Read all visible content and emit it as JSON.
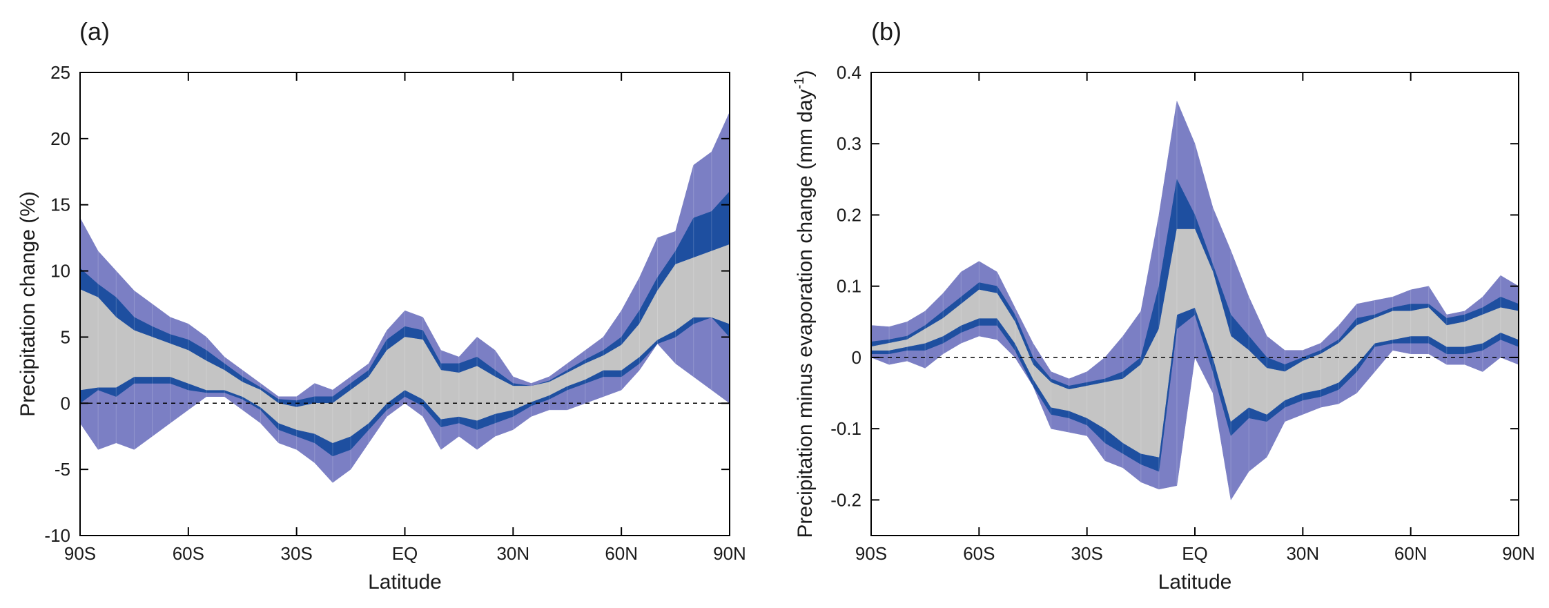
{
  "chart_data": [
    {
      "type": "area",
      "panel_label": "(a)",
      "xlabel": "Latitude",
      "ylabel": "Precipitation change (%)",
      "xlim": [
        -90,
        90
      ],
      "ylim": [
        -10,
        25
      ],
      "xticks": [
        -90,
        -60,
        -30,
        0,
        30,
        60,
        90
      ],
      "xtick_labels": [
        "90S",
        "60S",
        "30S",
        "EQ",
        "30N",
        "60N",
        "90N"
      ],
      "yticks": [
        -10,
        -5,
        0,
        5,
        10,
        15,
        20,
        25
      ],
      "ytick_labels": [
        "-10",
        "-5",
        "0",
        "5",
        "10",
        "15",
        "20",
        "25"
      ],
      "reference_line": 0,
      "x": [
        -90,
        -85,
        -80,
        -75,
        -70,
        -65,
        -60,
        -55,
        -50,
        -45,
        -40,
        -35,
        -30,
        -25,
        -20,
        -15,
        -10,
        -5,
        0,
        5,
        10,
        15,
        20,
        25,
        30,
        35,
        40,
        45,
        50,
        55,
        60,
        65,
        70,
        75,
        80,
        85,
        90
      ],
      "series": [
        {
          "band": "outer",
          "color": "#7b7fc4",
          "upper": [
            14.0,
            11.5,
            10.0,
            8.5,
            7.5,
            6.5,
            6.0,
            5.0,
            3.5,
            2.5,
            1.5,
            0.5,
            0.5,
            1.5,
            1.0,
            2.0,
            3.0,
            5.5,
            7.0,
            6.5,
            4.0,
            3.5,
            5.0,
            4.0,
            2.0,
            1.5,
            2.0,
            3.0,
            4.0,
            5.0,
            7.0,
            9.5,
            12.5,
            13.0,
            18.0,
            19.0,
            22.0
          ],
          "lower": [
            -1.5,
            -3.5,
            -3.0,
            -3.5,
            -2.5,
            -1.5,
            -0.5,
            0.5,
            0.5,
            -0.5,
            -1.5,
            -3.0,
            -3.5,
            -4.5,
            -6.0,
            -5.0,
            -3.0,
            -1.0,
            0.0,
            -1.0,
            -3.5,
            -2.5,
            -3.5,
            -2.5,
            -2.0,
            -1.0,
            -0.5,
            -0.5,
            0.0,
            0.5,
            1.0,
            2.5,
            4.5,
            3.0,
            2.0,
            1.0,
            0.0
          ]
        },
        {
          "band": "middle",
          "color": "#1e4fa0",
          "upper": [
            10.2,
            9.0,
            8.0,
            6.5,
            5.8,
            5.2,
            4.8,
            4.0,
            3.0,
            2.0,
            1.2,
            0.3,
            0.2,
            0.5,
            0.5,
            1.5,
            2.5,
            4.8,
            5.8,
            5.5,
            3.0,
            3.0,
            3.5,
            2.5,
            1.5,
            1.3,
            1.7,
            2.5,
            3.3,
            4.0,
            5.0,
            7.0,
            9.5,
            11.5,
            14.0,
            14.5,
            16.0
          ],
          "lower": [
            0.0,
            1.0,
            0.5,
            1.5,
            1.5,
            1.5,
            1.0,
            0.8,
            0.8,
            0.3,
            -0.5,
            -2.0,
            -2.5,
            -3.0,
            -4.0,
            -3.5,
            -2.0,
            -0.5,
            0.5,
            -0.2,
            -1.8,
            -1.5,
            -2.0,
            -1.5,
            -1.0,
            -0.2,
            0.3,
            1.0,
            1.5,
            2.0,
            2.0,
            3.0,
            4.5,
            5.0,
            6.0,
            6.5,
            5.0
          ]
        },
        {
          "band": "inner",
          "color": "#c4c4c4",
          "upper": [
            8.6,
            8.0,
            6.5,
            5.5,
            5.0,
            4.5,
            4.0,
            3.2,
            2.5,
            1.6,
            1.0,
            0.0,
            -0.3,
            0.0,
            0.0,
            1.0,
            2.0,
            4.0,
            5.0,
            4.8,
            2.5,
            2.3,
            2.8,
            2.0,
            1.3,
            1.3,
            1.6,
            2.3,
            3.0,
            3.6,
            4.4,
            6.0,
            8.5,
            10.5,
            11.0,
            11.5,
            12.0
          ],
          "lower": [
            1.0,
            1.2,
            1.2,
            2.0,
            2.0,
            2.0,
            1.5,
            1.0,
            1.0,
            0.5,
            -0.3,
            -1.5,
            -2.0,
            -2.3,
            -3.0,
            -2.5,
            -1.5,
            0.0,
            1.0,
            0.3,
            -1.2,
            -1.0,
            -1.3,
            -0.8,
            -0.5,
            0.1,
            0.6,
            1.3,
            1.8,
            2.5,
            2.5,
            3.5,
            4.8,
            5.5,
            6.5,
            6.5,
            6.0
          ]
        }
      ]
    },
    {
      "type": "area",
      "panel_label": "(b)",
      "xlabel": "Latitude",
      "ylabel": "Precipitation minus evaporation change (mm day",
      "ylabel_superscript": "-1",
      "ylabel_close": ")",
      "xlim": [
        -90,
        90
      ],
      "ylim": [
        -0.25,
        0.4
      ],
      "xticks": [
        -90,
        -60,
        -30,
        0,
        30,
        60,
        90
      ],
      "xtick_labels": [
        "90S",
        "60S",
        "30S",
        "EQ",
        "30N",
        "60N",
        "90N"
      ],
      "yticks": [
        -0.2,
        -0.1,
        0,
        0.1,
        0.2,
        0.3,
        0.4
      ],
      "ytick_labels": [
        "-0.2",
        "-0.1",
        "0",
        "0.1",
        "0.2",
        "0.3",
        "0.4"
      ],
      "reference_line": 0,
      "x": [
        -90,
        -85,
        -80,
        -75,
        -70,
        -65,
        -60,
        -55,
        -50,
        -45,
        -40,
        -35,
        -30,
        -25,
        -20,
        -15,
        -10,
        -5,
        0,
        5,
        10,
        15,
        20,
        25,
        30,
        35,
        40,
        45,
        50,
        55,
        60,
        65,
        70,
        75,
        80,
        85,
        90
      ],
      "series": [
        {
          "band": "outer",
          "color": "#7b7fc4",
          "upper": [
            0.045,
            0.043,
            0.05,
            0.065,
            0.09,
            0.12,
            0.135,
            0.12,
            0.07,
            0.02,
            -0.02,
            -0.03,
            -0.02,
            0.0,
            0.03,
            0.065,
            0.2,
            0.36,
            0.3,
            0.21,
            0.15,
            0.085,
            0.03,
            0.01,
            0.01,
            0.02,
            0.045,
            0.075,
            0.08,
            0.085,
            0.095,
            0.1,
            0.06,
            0.065,
            0.085,
            0.115,
            0.1
          ],
          "lower": [
            0.0,
            -0.01,
            -0.005,
            -0.015,
            0.005,
            0.02,
            0.03,
            0.025,
            0.0,
            -0.04,
            -0.1,
            -0.105,
            -0.11,
            -0.145,
            -0.155,
            -0.175,
            -0.185,
            -0.18,
            0.0,
            -0.05,
            -0.2,
            -0.16,
            -0.14,
            -0.09,
            -0.08,
            -0.07,
            -0.065,
            -0.05,
            -0.02,
            0.01,
            0.005,
            0.005,
            -0.01,
            -0.01,
            -0.02,
            0.0,
            -0.01
          ]
        },
        {
          "band": "middle",
          "color": "#1e4fa0",
          "upper": [
            0.022,
            0.025,
            0.03,
            0.045,
            0.065,
            0.085,
            0.105,
            0.1,
            0.06,
            0.0,
            -0.03,
            -0.04,
            -0.035,
            -0.03,
            -0.02,
            0.0,
            0.1,
            0.25,
            0.2,
            0.13,
            0.06,
            0.03,
            0.0,
            -0.01,
            0.0,
            0.01,
            0.025,
            0.055,
            0.06,
            0.07,
            0.075,
            0.075,
            0.055,
            0.06,
            0.07,
            0.085,
            0.075
          ],
          "lower": [
            0.005,
            0.005,
            0.01,
            0.01,
            0.02,
            0.035,
            0.045,
            0.045,
            0.01,
            -0.04,
            -0.08,
            -0.085,
            -0.095,
            -0.12,
            -0.135,
            -0.15,
            -0.16,
            0.04,
            0.06,
            -0.02,
            -0.11,
            -0.085,
            -0.09,
            -0.07,
            -0.06,
            -0.055,
            -0.045,
            -0.02,
            0.015,
            0.02,
            0.02,
            0.02,
            0.005,
            0.005,
            0.01,
            0.025,
            0.015
          ]
        },
        {
          "band": "inner",
          "color": "#c4c4c4",
          "upper": [
            0.015,
            0.02,
            0.025,
            0.04,
            0.055,
            0.075,
            0.095,
            0.09,
            0.05,
            -0.01,
            -0.035,
            -0.045,
            -0.04,
            -0.035,
            -0.03,
            -0.01,
            0.04,
            0.18,
            0.18,
            0.12,
            0.03,
            0.01,
            -0.015,
            -0.02,
            -0.005,
            0.005,
            0.02,
            0.045,
            0.055,
            0.065,
            0.065,
            0.07,
            0.045,
            0.05,
            0.06,
            0.07,
            0.065
          ],
          "lower": [
            0.01,
            0.01,
            0.015,
            0.02,
            0.03,
            0.045,
            0.055,
            0.055,
            0.02,
            -0.03,
            -0.07,
            -0.075,
            -0.085,
            -0.1,
            -0.12,
            -0.135,
            -0.14,
            0.06,
            0.07,
            0.0,
            -0.09,
            -0.07,
            -0.08,
            -0.06,
            -0.05,
            -0.045,
            -0.035,
            -0.01,
            0.02,
            0.025,
            0.03,
            0.03,
            0.015,
            0.015,
            0.02,
            0.035,
            0.025
          ]
        }
      ]
    }
  ]
}
